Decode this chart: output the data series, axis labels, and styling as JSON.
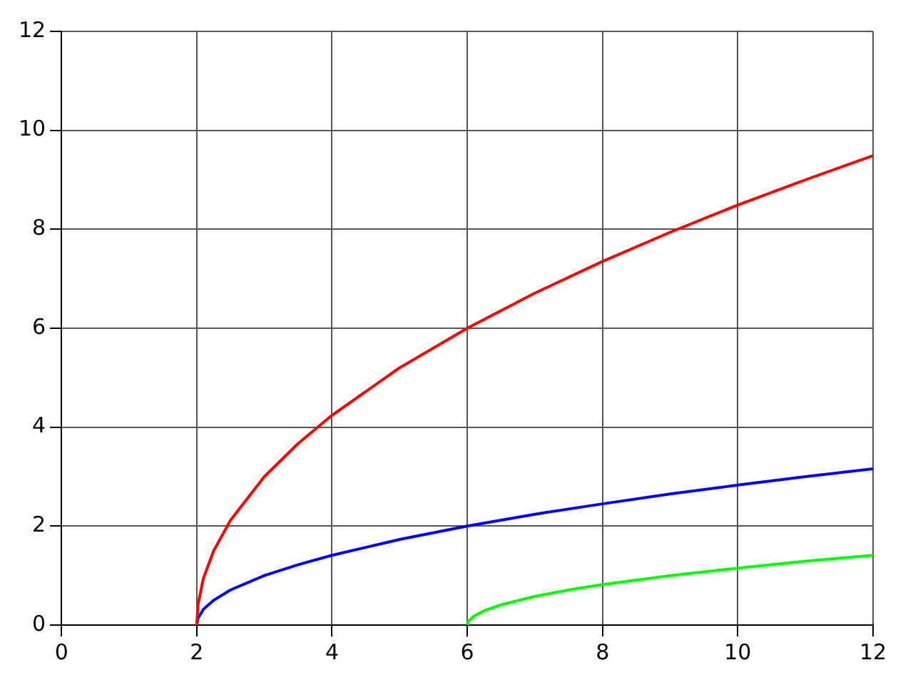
{
  "chart_data": {
    "type": "line",
    "xlim": [
      0,
      12
    ],
    "xticks": [
      0,
      2,
      4,
      6,
      8,
      10,
      12
    ],
    "ylim": [
      0,
      12
    ],
    "yticks": [
      0,
      2,
      4,
      6,
      8,
      10,
      12
    ],
    "grid": true,
    "legend": false,
    "marker": "none",
    "line_style": "solid",
    "series": [
      {
        "color": "#ff0000",
        "x": [
          2,
          2.02,
          2.1,
          2.25,
          2.5,
          3,
          3.5,
          4,
          5,
          6,
          7,
          8,
          9,
          10,
          11,
          12
        ],
        "values": [
          0,
          0.42,
          0.95,
          1.5,
          2.12,
          3,
          3.67,
          4.24,
          5.2,
          6,
          6.71,
          7.35,
          7.94,
          8.49,
          9,
          9.49
        ]
      },
      {
        "color": "#0000ff",
        "x": [
          2,
          2.02,
          2.1,
          2.25,
          2.5,
          3,
          3.5,
          4,
          5,
          6,
          7,
          8,
          9,
          10,
          11,
          12
        ],
        "values": [
          0,
          0.14,
          0.32,
          0.5,
          0.71,
          1,
          1.22,
          1.41,
          1.73,
          2,
          2.24,
          2.45,
          2.65,
          2.83,
          3,
          3.16
        ]
      },
      {
        "color": "#00ff00",
        "x": [
          6,
          6.02,
          6.1,
          6.25,
          6.5,
          7,
          7.5,
          8,
          9,
          10,
          11,
          12
        ],
        "values": [
          0,
          0.08,
          0.18,
          0.29,
          0.41,
          0.58,
          0.71,
          0.82,
          1,
          1.15,
          1.29,
          1.41
        ]
      }
    ]
  }
}
